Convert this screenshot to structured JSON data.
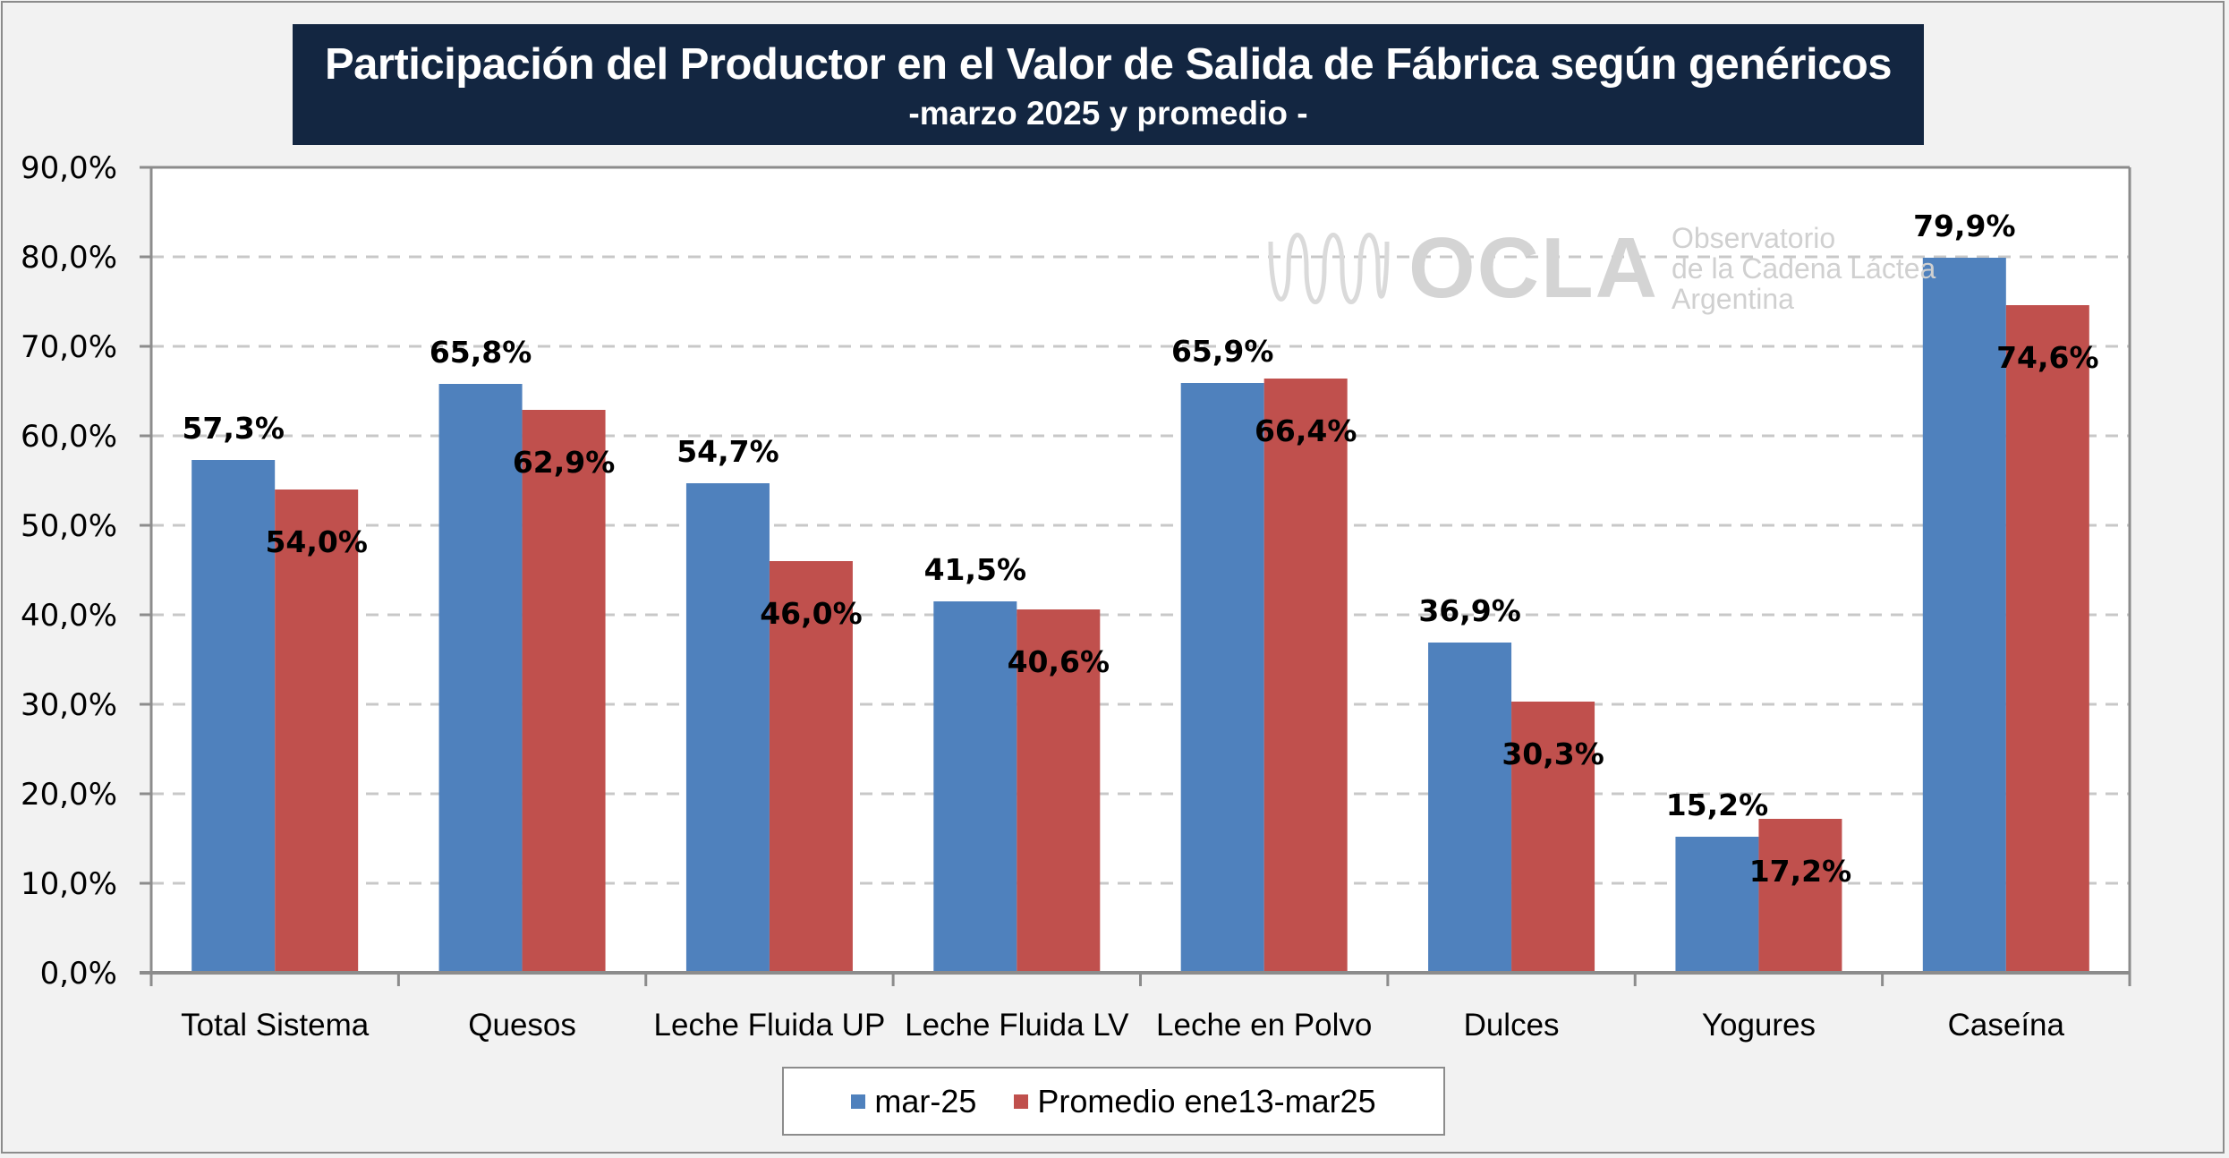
{
  "title": {
    "main": "Participación del Productor en el Valor de Salida de Fábrica según genéricos",
    "sub": "-marzo 2025 y promedio  -"
  },
  "watermark": {
    "logo": "OCLA",
    "line1": "Observatorio",
    "line2": "de la Cadena Láctea",
    "line3": "Argentina"
  },
  "legend": {
    "items": [
      {
        "label": "mar-25",
        "color": "#4f81bd"
      },
      {
        "label": "Promedio ene13-mar25",
        "color": "#c0504d"
      }
    ]
  },
  "chart_data": {
    "type": "bar",
    "title": "Participación del Productor en el Valor de Salida de Fábrica según genéricos -marzo 2025 y promedio -",
    "xlabel": "",
    "ylabel": "",
    "ylim": [
      0,
      90
    ],
    "yticks": [
      0,
      10,
      20,
      30,
      40,
      50,
      60,
      70,
      80,
      90
    ],
    "ytick_labels": [
      "0,0%",
      "10,0%",
      "20,0%",
      "30,0%",
      "40,0%",
      "50,0%",
      "60,0%",
      "70,0%",
      "80,0%",
      "90,0%"
    ],
    "grid": true,
    "legend_position": "bottom",
    "categories": [
      "Total Sistema",
      "Quesos",
      "Leche Fluida UP",
      "Leche Fluida LV",
      "Leche en Polvo",
      "Dulces",
      "Yogures",
      "Caseína"
    ],
    "series": [
      {
        "name": "mar-25",
        "color": "#4f81bd",
        "values": [
          57.3,
          65.8,
          54.7,
          41.5,
          65.9,
          36.9,
          15.2,
          79.9
        ],
        "labels": [
          "57,3%",
          "65,8%",
          "54,7%",
          "41,5%",
          "65,9%",
          "36,9%",
          "15,2%",
          "79,9%"
        ]
      },
      {
        "name": "Promedio ene13-mar25",
        "color": "#c0504d",
        "values": [
          54.0,
          62.9,
          46.0,
          40.6,
          66.4,
          30.3,
          17.2,
          74.6
        ],
        "labels": [
          "54,0%",
          "62,9%",
          "46,0%",
          "40,6%",
          "66,4%",
          "30,3%",
          "17,2%",
          "74,6%"
        ]
      }
    ]
  }
}
